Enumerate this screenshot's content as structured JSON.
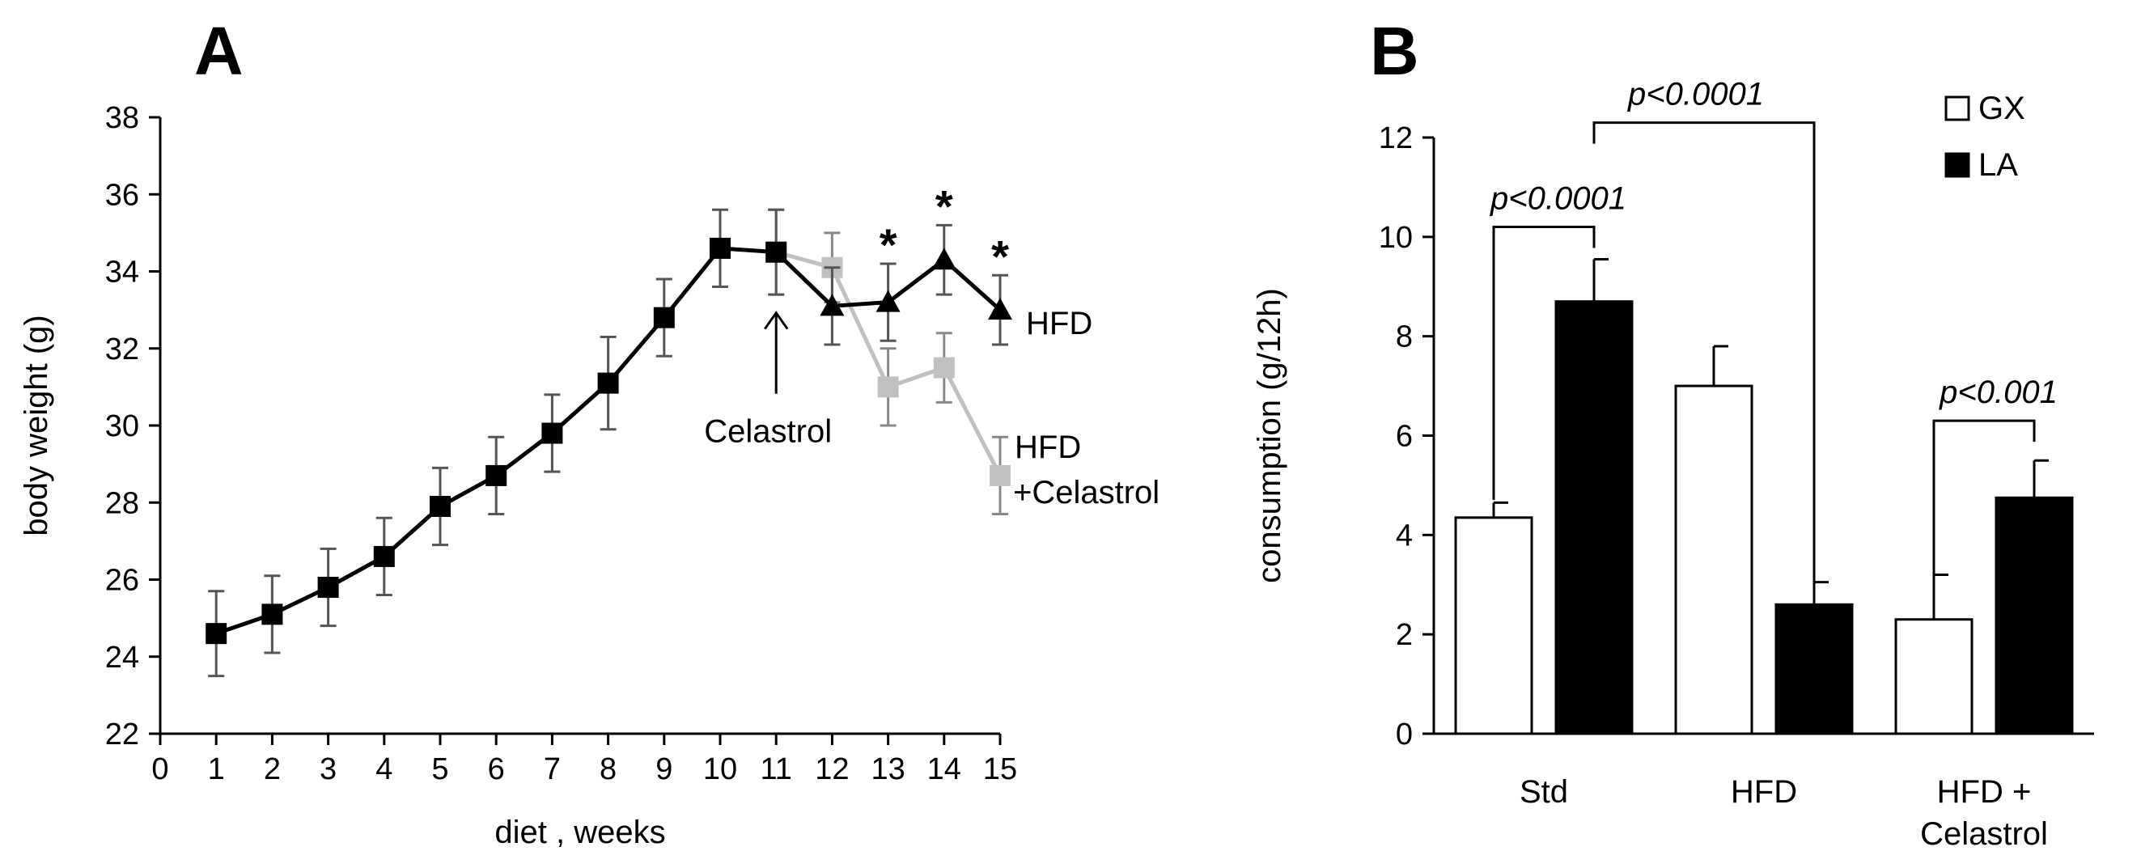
{
  "chart_data": [
    {
      "panel": "A",
      "type": "line",
      "title": "",
      "xlabel": "diet , weeks",
      "ylabel": "body weight (g)",
      "xlim": [
        0,
        15
      ],
      "ylim": [
        22,
        38
      ],
      "x_ticks": [
        0,
        1,
        2,
        3,
        4,
        5,
        6,
        7,
        8,
        9,
        10,
        11,
        12,
        13,
        14,
        15
      ],
      "y_ticks": [
        22,
        24,
        26,
        28,
        30,
        32,
        34,
        36,
        38
      ],
      "grid": false,
      "series": [
        {
          "name": "HFD",
          "color": "#000000",
          "x": [
            1,
            2,
            3,
            4,
            5,
            6,
            7,
            8,
            9,
            10,
            11,
            12,
            13,
            14,
            15
          ],
          "y": [
            24.6,
            25.1,
            25.8,
            26.6,
            27.9,
            28.7,
            29.8,
            31.1,
            32.8,
            34.6,
            34.5,
            33.1,
            33.2,
            34.3,
            33.0
          ],
          "err": [
            1.1,
            1.0,
            1.0,
            1.0,
            1.0,
            1.0,
            1.0,
            1.2,
            1.0,
            1.0,
            1.1,
            1.0,
            1.0,
            0.9,
            0.9
          ],
          "markers": [
            "square",
            "square",
            "square",
            "square",
            "square",
            "square",
            "square",
            "square",
            "square",
            "square",
            "square",
            "triangle",
            "triangle",
            "triangle",
            "triangle"
          ]
        },
        {
          "name": "HFD +Celastrol",
          "color": "#c0c0c0",
          "x": [
            11,
            12,
            13,
            14,
            15
          ],
          "y": [
            34.5,
            34.1,
            31.0,
            31.5,
            28.7
          ],
          "err": [
            1.1,
            0.9,
            1.0,
            0.9,
            1.0
          ],
          "markers": [
            "square",
            "square",
            "square",
            "square",
            "square"
          ]
        }
      ],
      "annotations": {
        "panel_label": "A",
        "celastrol_arrow_label": "Celastrol",
        "celastrol_arrow_week": 11,
        "hfd_label": "HFD",
        "celastrol_label_line1": "HFD",
        "celastrol_label_line2": "+Celastrol",
        "asterisk": "*",
        "asterisk_weeks": [
          13,
          14,
          15
        ]
      }
    },
    {
      "panel": "B",
      "type": "bar",
      "title": "",
      "xlabel": "",
      "ylabel": "consumption (g/12h)",
      "ylim": [
        0,
        12
      ],
      "y_ticks": [
        0,
        2,
        4,
        6,
        8,
        10,
        12
      ],
      "grid": false,
      "legend_position": "top-right",
      "categories": [
        "Std",
        "HFD",
        "HFD + Celastrol"
      ],
      "category_lines": [
        [
          "Std"
        ],
        [
          "HFD"
        ],
        [
          "HFD +",
          "Celastrol"
        ]
      ],
      "series": [
        {
          "name": "GX",
          "color": "#ffffff",
          "values": [
            4.35,
            7.0,
            2.3
          ],
          "err": [
            0.3,
            0.8,
            0.9
          ]
        },
        {
          "name": "LA",
          "color": "#000000",
          "values": [
            8.7,
            2.6,
            4.75
          ],
          "err": [
            0.85,
            0.45,
            0.75
          ]
        }
      ],
      "significance": [
        {
          "label": "p<0.0001",
          "from": {
            "category": 0,
            "series": 0
          },
          "to": {
            "category": 0,
            "series": 1
          },
          "bracket_y": 10.2
        },
        {
          "label": "p<0.0001",
          "from": {
            "category": 0,
            "series": 1
          },
          "to": {
            "category": 1,
            "series": 1
          },
          "bracket_y": 12.3
        },
        {
          "label": "p<0.001",
          "from": {
            "category": 2,
            "series": 0
          },
          "to": {
            "category": 2,
            "series": 1
          },
          "bracket_y": 6.3
        }
      ],
      "annotations": {
        "panel_label": "B"
      }
    }
  ]
}
